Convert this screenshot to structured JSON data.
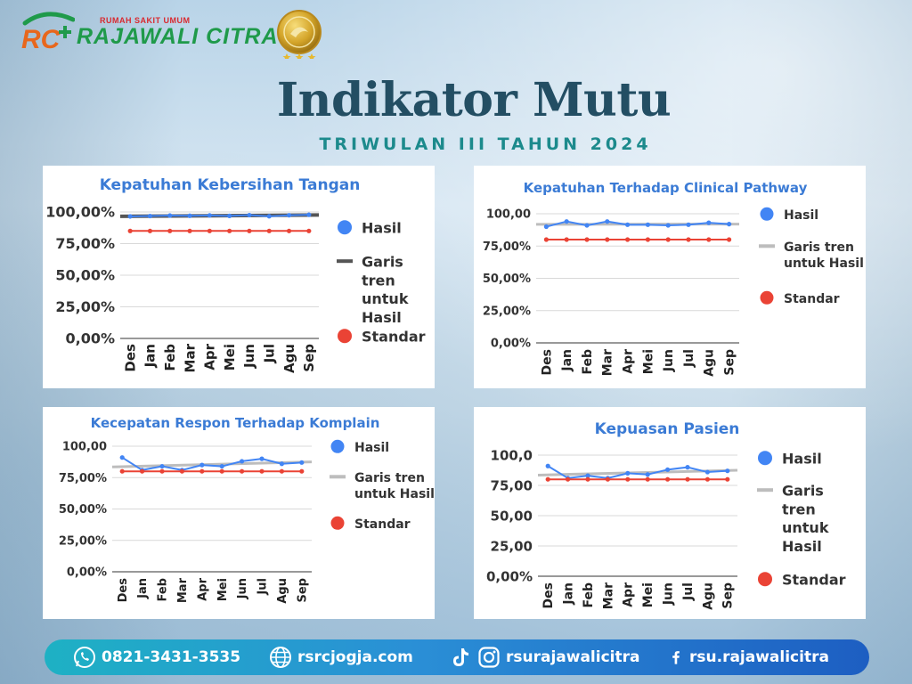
{
  "header": {
    "logo_sub": "RUMAH SAKIT UMUM",
    "logo_name": "RAJAWALI CITRA",
    "logo_mark": "RC",
    "title": "Indikator Mutu",
    "subtitle": "TRIWULAN III TAHUN 2024"
  },
  "colors": {
    "hasil": "#4285f4",
    "standar": "#ea4335",
    "trend_dark": "#555555",
    "trend_light": "#bdbdbd",
    "title_blue": "#3b7bd5",
    "heading": "#234e63",
    "subheading": "#1c8a8c"
  },
  "chart_data": [
    {
      "type": "line",
      "title": "Kepatuhan Kebersihan Tangan",
      "categories": [
        "Des",
        "Jan",
        "Feb",
        "Mar",
        "Apr",
        "Mei",
        "Jun",
        "Jul",
        "Agu",
        "Sep"
      ],
      "yticks": [
        "100,00%",
        "75,00%",
        "50,00%",
        "25,00%",
        "0,00%"
      ],
      "ylim": [
        0,
        100
      ],
      "series": [
        {
          "name": "Hasil",
          "values": [
            96.5,
            96.8,
            97.2,
            97.0,
            97.3,
            96.9,
            97.5,
            96.6,
            97.4,
            97.8
          ]
        },
        {
          "name": "Standar",
          "values": [
            85,
            85,
            85,
            85,
            85,
            85,
            85,
            85,
            85,
            85
          ]
        }
      ],
      "trend": {
        "name": "Garis tren untuk Hasil",
        "start": 96.6,
        "end": 97.6,
        "style": "dark"
      },
      "legend": [
        "Hasil",
        "Garis tren untuk Hasil",
        "Standar"
      ],
      "legend_position": "right",
      "grid": true
    },
    {
      "type": "line",
      "title": "Kepatuhan Terhadap Clinical Pathway",
      "categories": [
        "Des",
        "Jan",
        "Feb",
        "Mar",
        "Apr",
        "Mei",
        "Jun",
        "Jul",
        "Agu",
        "Sep"
      ],
      "yticks": [
        "100,00",
        "75,00%",
        "50,00%",
        "25,00%",
        "0,00%"
      ],
      "ylim": [
        0,
        100
      ],
      "series": [
        {
          "name": "Hasil",
          "values": [
            90,
            94,
            91,
            94,
            91.5,
            91.5,
            91,
            91.5,
            93,
            92
          ]
        },
        {
          "name": "Standar",
          "values": [
            80,
            80,
            80,
            80,
            80,
            80,
            80,
            80,
            80,
            80
          ]
        }
      ],
      "trend": {
        "name": "Garis tren untuk Hasil",
        "start": 91.8,
        "end": 92.0,
        "style": "light"
      },
      "legend": [
        "Hasil",
        "Garis tren untuk Hasil",
        "Standar"
      ],
      "legend_position": "right",
      "grid": true
    },
    {
      "type": "line",
      "title": "Kecepatan Respon Terhadap Komplain",
      "categories": [
        "Des",
        "Jan",
        "Feb",
        "Mar",
        "Apr",
        "Mei",
        "Jun",
        "Jul",
        "Agu",
        "Sep"
      ],
      "yticks": [
        "100,00",
        "75,00%",
        "50,00%",
        "25,00%",
        "0,00%"
      ],
      "ylim": [
        0,
        100
      ],
      "series": [
        {
          "name": "Hasil",
          "values": [
            91,
            81,
            84,
            81,
            85,
            84,
            88,
            90,
            86,
            87
          ]
        },
        {
          "name": "Standar",
          "values": [
            80,
            80,
            80,
            80,
            80,
            80,
            80,
            80,
            80,
            80
          ]
        }
      ],
      "trend": {
        "name": "Garis tren untuk Hasil",
        "start": 83.5,
        "end": 87.5,
        "style": "light"
      },
      "legend": [
        "Hasil",
        "Garis tren untuk Hasil",
        "Standar"
      ],
      "legend_position": "right",
      "grid": true
    },
    {
      "type": "line",
      "title": "Kepuasan Pasien",
      "categories": [
        "Des",
        "Jan",
        "Feb",
        "Mar",
        "Apr",
        "Mei",
        "Jun",
        "Jul",
        "Agu",
        "Sep"
      ],
      "yticks": [
        "100,0",
        "75,00",
        "50,00",
        "25,00",
        "0,00%"
      ],
      "ylim": [
        0,
        100
      ],
      "series": [
        {
          "name": "Hasil",
          "values": [
            91,
            81,
            83,
            81,
            85,
            84,
            88,
            90,
            86,
            87
          ]
        },
        {
          "name": "Standar",
          "values": [
            80,
            80,
            80,
            80,
            80,
            80,
            80,
            80,
            80,
            80
          ]
        }
      ],
      "trend": {
        "name": "Garis tren untuk Hasil",
        "start": 83.5,
        "end": 87.5,
        "style": "light"
      },
      "legend": [
        "Hasil",
        "Garis tren untuk Hasil",
        "Standar"
      ],
      "legend_position": "right",
      "grid": true
    }
  ],
  "footer": {
    "phone": "0821-3431-3535",
    "website": "rsrcjogja.com",
    "instagram": "rsurajawalicitra",
    "facebook": "rsu.rajawalicitra",
    "icons": [
      "whatsapp-icon",
      "globe-icon",
      "tiktok-icon",
      "instagram-icon",
      "facebook-icon"
    ]
  }
}
